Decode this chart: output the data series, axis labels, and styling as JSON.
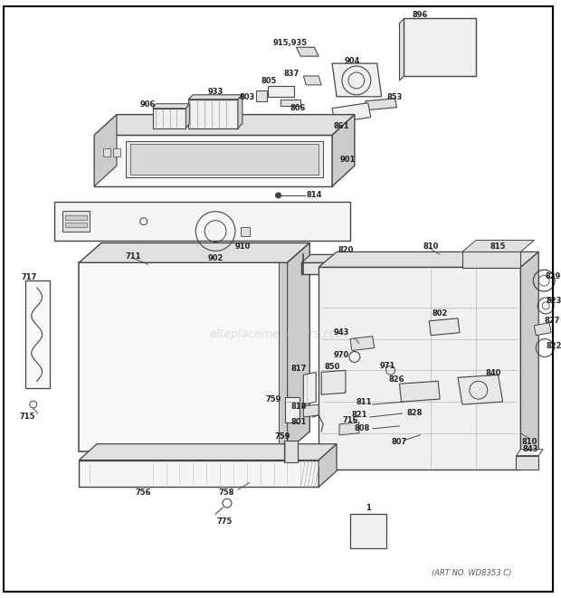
{
  "background_color": "#ffffff",
  "border_color": "#000000",
  "watermark_text": "eReplacementParts.com",
  "art_no": "(ART NO. WD8353 C)",
  "fig_width": 6.2,
  "fig_height": 6.61,
  "dpi": 100,
  "label_fs": 6.0,
  "label_color": "#222222",
  "line_color": "#444444",
  "fill_light": "#f0f0f0",
  "fill_mid": "#e0e0e0",
  "fill_dark": "#cccccc"
}
